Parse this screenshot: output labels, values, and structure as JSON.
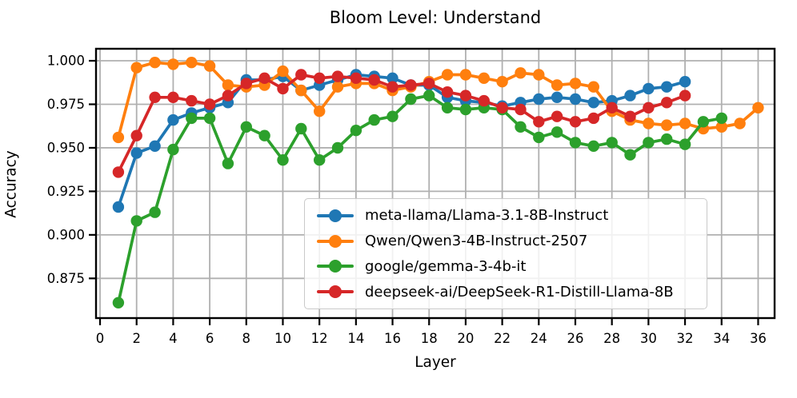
{
  "chart_data": {
    "type": "line",
    "title": "Bloom Level: Understand",
    "xlabel": "Layer",
    "ylabel": "Accuracy",
    "grid": true,
    "legend_position": "lower right",
    "x_ticks": [
      0,
      2,
      4,
      6,
      8,
      10,
      12,
      14,
      16,
      18,
      20,
      22,
      24,
      26,
      28,
      30,
      32,
      34,
      36
    ],
    "y_ticks": [
      0.875,
      0.9,
      0.925,
      0.95,
      0.975,
      1.0
    ],
    "xlim": [
      -0.22,
      36.9
    ],
    "ylim": [
      0.8522,
      1.0069
    ],
    "series": [
      {
        "name": "meta-llama/Llama-3.1-8B-Instruct",
        "color": "#1f77b4",
        "x_start": 1,
        "values": [
          0.916,
          0.947,
          0.951,
          0.966,
          0.97,
          0.973,
          0.976,
          0.989,
          0.989,
          0.991,
          0.983,
          0.986,
          0.989,
          0.992,
          0.991,
          0.99,
          0.986,
          0.986,
          0.979,
          0.977,
          0.976,
          0.974,
          0.976,
          0.978,
          0.979,
          0.978,
          0.976,
          0.977,
          0.98,
          0.984,
          0.985,
          0.988
        ]
      },
      {
        "name": "Qwen/Qwen3-4B-Instruct-2507",
        "color": "#ff7f0e",
        "x_start": 1,
        "values": [
          0.956,
          0.996,
          0.999,
          0.998,
          0.999,
          0.997,
          0.986,
          0.985,
          0.986,
          0.994,
          0.983,
          0.971,
          0.985,
          0.987,
          0.987,
          0.983,
          0.985,
          0.988,
          0.992,
          0.992,
          0.99,
          0.988,
          0.993,
          0.992,
          0.986,
          0.987,
          0.985,
          0.971,
          0.966,
          0.964,
          0.963,
          0.964,
          0.961,
          0.962,
          0.964,
          0.973
        ]
      },
      {
        "name": "google/gemma-3-4b-it",
        "color": "#2ca02c",
        "x_start": 1,
        "values": [
          0.861,
          0.908,
          0.913,
          0.949,
          0.967,
          0.967,
          0.941,
          0.962,
          0.957,
          0.943,
          0.961,
          0.943,
          0.95,
          0.96,
          0.966,
          0.968,
          0.978,
          0.98,
          0.973,
          0.972,
          0.973,
          0.972,
          0.962,
          0.956,
          0.959,
          0.953,
          0.951,
          0.953,
          0.946,
          0.953,
          0.955,
          0.952,
          0.965,
          0.967
        ]
      },
      {
        "name": "deepseek-ai/DeepSeek-R1-Distill-Llama-8B",
        "color": "#d62728",
        "x_start": 1,
        "values": [
          0.936,
          0.957,
          0.979,
          0.979,
          0.977,
          0.975,
          0.98,
          0.987,
          0.99,
          0.984,
          0.992,
          0.99,
          0.991,
          0.99,
          0.989,
          0.985,
          0.986,
          0.987,
          0.982,
          0.98,
          0.977,
          0.973,
          0.972,
          0.965,
          0.968,
          0.965,
          0.967,
          0.973,
          0.968,
          0.973,
          0.976,
          0.98
        ]
      }
    ]
  }
}
